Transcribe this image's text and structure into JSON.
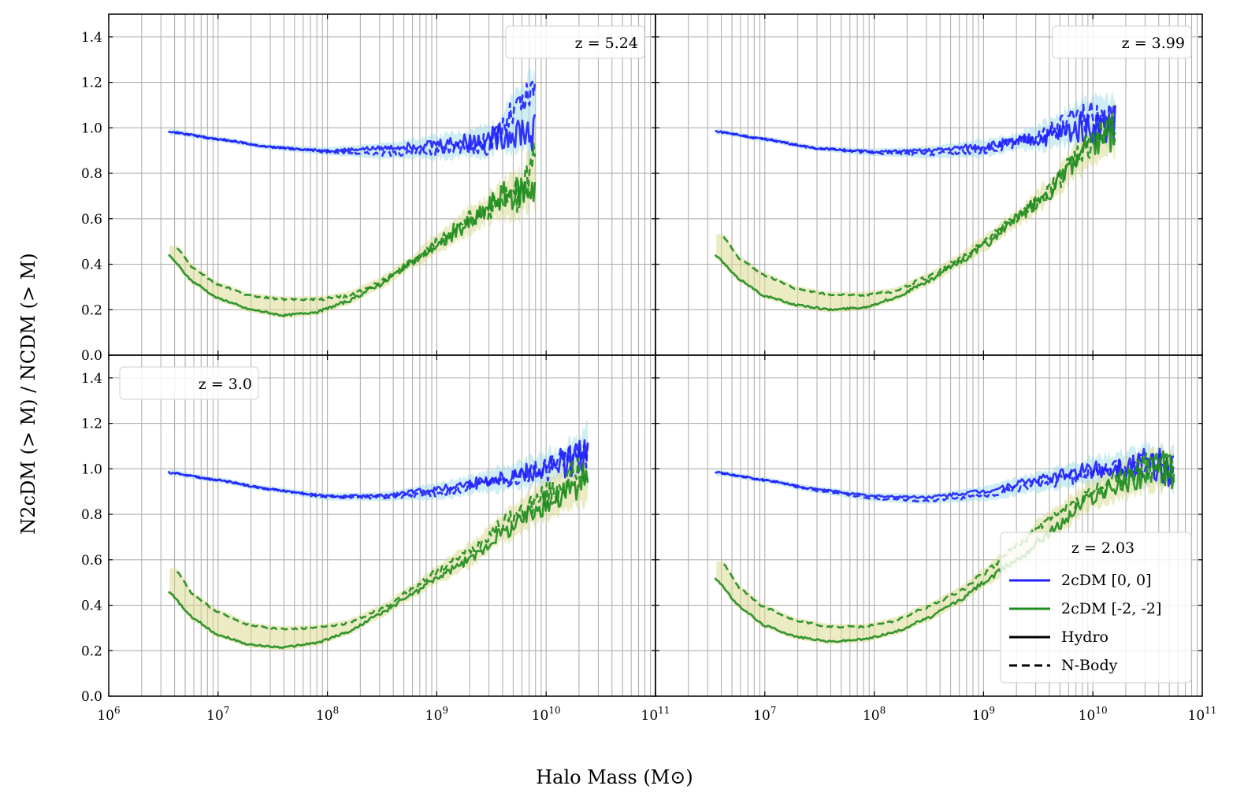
{
  "figure": {
    "xlabel": "Halo Mass (M⊙)",
    "ylabel": "N2cDM (> M) / NCDM (> M)"
  },
  "legend": {
    "title": "z = 2.03",
    "entries": [
      {
        "label": "2cDM [0, 0]",
        "color": "#1f1fff",
        "style": "solid"
      },
      {
        "label": "2cDM [-2, -2]",
        "color": "#1e8c1e",
        "style": "solid"
      },
      {
        "label": "Hydro",
        "color": "#000000",
        "style": "solid"
      },
      {
        "label": "N-Body",
        "color": "#000000",
        "style": "dashed"
      }
    ]
  },
  "colors": {
    "blue": "#1f1fff",
    "green": "#1e8c1e",
    "cyan_band": "#9edcec",
    "olive_band": "#d8d88a",
    "grid": "#b0b0b0"
  },
  "chart_data": [
    {
      "type": "line",
      "panel": "top-left",
      "label": "z = 5.24",
      "label_position": "top-right",
      "xscale": "log",
      "xlim": [
        1000000.0,
        100000000000.0
      ],
      "ylim": [
        0.0,
        1.5
      ],
      "xticks": [],
      "yticks": [
        "0.0",
        "0.2",
        "0.4",
        "0.6",
        "0.8",
        "1.0",
        "1.2",
        "1.4"
      ],
      "xmax_data": 7900000000.0,
      "series": [
        {
          "name": "2cDM [0, 0] Hydro",
          "style": "solid",
          "color": "#1f1fff",
          "points": [
            [
              3500000.0,
              0.985
            ],
            [
              10000000.0,
              0.95
            ],
            [
              30000000.0,
              0.915
            ],
            [
              100000000.0,
              0.9
            ],
            [
              300000000.0,
              0.91
            ],
            [
              1000000000.0,
              0.93
            ],
            [
              3000000000.0,
              0.95
            ],
            [
              6000000000.0,
              0.99
            ],
            [
              7900000000.0,
              0.97
            ]
          ]
        },
        {
          "name": "2cDM [0, 0] N-Body",
          "style": "dashed",
          "color": "#1f1fff",
          "points": [
            [
              4000000.0,
              0.98
            ],
            [
              10000000.0,
              0.95
            ],
            [
              30000000.0,
              0.915
            ],
            [
              100000000.0,
              0.895
            ],
            [
              300000000.0,
              0.885
            ],
            [
              1000000000.0,
              0.9
            ],
            [
              3000000000.0,
              0.93
            ],
            [
              6000000000.0,
              1.1
            ],
            [
              7900000000.0,
              1.15
            ]
          ]
        },
        {
          "name": "2cDM [-2, -2] Hydro",
          "style": "solid",
          "color": "#1e8c1e",
          "points": [
            [
              3500000.0,
              0.44
            ],
            [
              6000000.0,
              0.32
            ],
            [
              10000000.0,
              0.25
            ],
            [
              20000000.0,
              0.2
            ],
            [
              40000000.0,
              0.175
            ],
            [
              80000000.0,
              0.19
            ],
            [
              150000000.0,
              0.235
            ],
            [
              300000000.0,
              0.31
            ],
            [
              600000000.0,
              0.41
            ],
            [
              1000000000.0,
              0.48
            ],
            [
              2000000000.0,
              0.58
            ],
            [
              4000000000.0,
              0.7
            ],
            [
              6000000000.0,
              0.72
            ],
            [
              7900000000.0,
              0.75
            ]
          ]
        },
        {
          "name": "2cDM [-2, -2] N-Body",
          "style": "dashed",
          "color": "#1e8c1e",
          "points": [
            [
              4200000.0,
              0.47
            ],
            [
              6000000.0,
              0.38
            ],
            [
              10000000.0,
              0.31
            ],
            [
              20000000.0,
              0.26
            ],
            [
              40000000.0,
              0.245
            ],
            [
              80000000.0,
              0.245
            ],
            [
              150000000.0,
              0.26
            ],
            [
              300000000.0,
              0.32
            ],
            [
              600000000.0,
              0.41
            ],
            [
              1000000000.0,
              0.5
            ],
            [
              2000000000.0,
              0.6
            ],
            [
              4000000000.0,
              0.67
            ],
            [
              6000000000.0,
              0.7
            ],
            [
              7900000000.0,
              0.9
            ]
          ]
        }
      ]
    },
    {
      "type": "line",
      "panel": "top-right",
      "label": "z = 3.99",
      "label_position": "top-right",
      "xscale": "log",
      "xlim": [
        1000000.0,
        100000000000.0
      ],
      "ylim": [
        0.0,
        1.5
      ],
      "xticks": [],
      "yticks": [],
      "xmax_data": 16000000000.0,
      "series": [
        {
          "name": "2cDM [0, 0] Hydro",
          "style": "solid",
          "color": "#1f1fff",
          "points": [
            [
              3500000.0,
              0.985
            ],
            [
              10000000.0,
              0.95
            ],
            [
              30000000.0,
              0.91
            ],
            [
              100000000.0,
              0.895
            ],
            [
              300000000.0,
              0.9
            ],
            [
              1000000000.0,
              0.92
            ],
            [
              3000000000.0,
              0.95
            ],
            [
              8000000000.0,
              1.0
            ],
            [
              16000000000.0,
              1.02
            ]
          ]
        },
        {
          "name": "2cDM [0, 0] N-Body",
          "style": "dashed",
          "color": "#1f1fff",
          "points": [
            [
              4000000.0,
              0.98
            ],
            [
              10000000.0,
              0.95
            ],
            [
              30000000.0,
              0.91
            ],
            [
              100000000.0,
              0.89
            ],
            [
              300000000.0,
              0.885
            ],
            [
              1000000000.0,
              0.9
            ],
            [
              3000000000.0,
              0.96
            ],
            [
              8000000000.0,
              1.05
            ],
            [
              16000000000.0,
              1.05
            ]
          ]
        },
        {
          "name": "2cDM [-2, -2] Hydro",
          "style": "solid",
          "color": "#1e8c1e",
          "points": [
            [
              3500000.0,
              0.44
            ],
            [
              6000000.0,
              0.33
            ],
            [
              10000000.0,
              0.26
            ],
            [
              20000000.0,
              0.22
            ],
            [
              40000000.0,
              0.2
            ],
            [
              80000000.0,
              0.21
            ],
            [
              150000000.0,
              0.25
            ],
            [
              300000000.0,
              0.32
            ],
            [
              600000000.0,
              0.41
            ],
            [
              1000000000.0,
              0.48
            ],
            [
              2000000000.0,
              0.6
            ],
            [
              4000000000.0,
              0.72
            ],
            [
              8000000000.0,
              0.88
            ],
            [
              16000000000.0,
              0.98
            ]
          ]
        },
        {
          "name": "2cDM [-2, -2] N-Body",
          "style": "dashed",
          "color": "#1e8c1e",
          "points": [
            [
              4200000.0,
              0.52
            ],
            [
              6000000.0,
              0.42
            ],
            [
              10000000.0,
              0.35
            ],
            [
              20000000.0,
              0.29
            ],
            [
              40000000.0,
              0.265
            ],
            [
              80000000.0,
              0.265
            ],
            [
              150000000.0,
              0.28
            ],
            [
              300000000.0,
              0.34
            ],
            [
              600000000.0,
              0.42
            ],
            [
              1000000000.0,
              0.5
            ],
            [
              2000000000.0,
              0.6
            ],
            [
              4000000000.0,
              0.72
            ],
            [
              8000000000.0,
              0.9
            ],
            [
              16000000000.0,
              1.0
            ]
          ]
        }
      ]
    },
    {
      "type": "line",
      "panel": "bottom-left",
      "label": "z = 3.0",
      "label_position": "top-left",
      "xscale": "log",
      "xlim": [
        1000000.0,
        100000000000.0
      ],
      "ylim": [
        0.0,
        1.5
      ],
      "xticks": [
        "10^6",
        "10^7",
        "10^8",
        "10^9",
        "10^10",
        "10^11"
      ],
      "yticks": [
        "0.0",
        "0.2",
        "0.4",
        "0.6",
        "0.8",
        "1.0",
        "1.2",
        "1.4"
      ],
      "xmax_data": 24000000000.0,
      "series": [
        {
          "name": "2cDM [0, 0] Hydro",
          "style": "solid",
          "color": "#1f1fff",
          "points": [
            [
              3500000.0,
              0.985
            ],
            [
              10000000.0,
              0.95
            ],
            [
              30000000.0,
              0.91
            ],
            [
              100000000.0,
              0.88
            ],
            [
              300000000.0,
              0.88
            ],
            [
              1000000000.0,
              0.91
            ],
            [
              3000000000.0,
              0.95
            ],
            [
              10000000000.0,
              1.0
            ],
            [
              24000000000.0,
              1.05
            ]
          ]
        },
        {
          "name": "2cDM [0, 0] N-Body",
          "style": "dashed",
          "color": "#1f1fff",
          "points": [
            [
              4000000.0,
              0.98
            ],
            [
              10000000.0,
              0.95
            ],
            [
              30000000.0,
              0.91
            ],
            [
              100000000.0,
              0.875
            ],
            [
              300000000.0,
              0.875
            ],
            [
              1000000000.0,
              0.89
            ],
            [
              3000000000.0,
              0.94
            ],
            [
              10000000000.0,
              1.0
            ],
            [
              24000000000.0,
              1.08
            ]
          ]
        },
        {
          "name": "2cDM [-2, -2] Hydro",
          "style": "solid",
          "color": "#1e8c1e",
          "points": [
            [
              3500000.0,
              0.46
            ],
            [
              6000000.0,
              0.34
            ],
            [
              10000000.0,
              0.27
            ],
            [
              20000000.0,
              0.225
            ],
            [
              40000000.0,
              0.215
            ],
            [
              80000000.0,
              0.235
            ],
            [
              150000000.0,
              0.28
            ],
            [
              300000000.0,
              0.36
            ],
            [
              600000000.0,
              0.45
            ],
            [
              1000000000.0,
              0.52
            ],
            [
              2000000000.0,
              0.6
            ],
            [
              4000000000.0,
              0.72
            ],
            [
              10000000000.0,
              0.85
            ],
            [
              24000000000.0,
              0.95
            ]
          ]
        },
        {
          "name": "2cDM [-2, -2] N-Body",
          "style": "dashed",
          "color": "#1e8c1e",
          "points": [
            [
              4200000.0,
              0.55
            ],
            [
              6000000.0,
              0.44
            ],
            [
              10000000.0,
              0.37
            ],
            [
              20000000.0,
              0.31
            ],
            [
              40000000.0,
              0.295
            ],
            [
              80000000.0,
              0.3
            ],
            [
              150000000.0,
              0.32
            ],
            [
              300000000.0,
              0.38
            ],
            [
              600000000.0,
              0.47
            ],
            [
              1000000000.0,
              0.55
            ],
            [
              2000000000.0,
              0.64
            ],
            [
              4000000000.0,
              0.76
            ],
            [
              10000000000.0,
              0.88
            ],
            [
              24000000000.0,
              1.0
            ]
          ]
        }
      ]
    },
    {
      "type": "line",
      "panel": "bottom-right",
      "label": "z = 2.03",
      "label_position": "legend",
      "xscale": "log",
      "xlim": [
        1000000.0,
        100000000000.0
      ],
      "ylim": [
        0.0,
        1.5
      ],
      "xticks": [
        "10^7",
        "10^8",
        "10^9",
        "10^10",
        "10^11"
      ],
      "yticks": [],
      "xmax_data": 55000000000.0,
      "series": [
        {
          "name": "2cDM [0, 0] Hydro",
          "style": "solid",
          "color": "#1f1fff",
          "points": [
            [
              3500000.0,
              0.985
            ],
            [
              10000000.0,
              0.95
            ],
            [
              30000000.0,
              0.91
            ],
            [
              100000000.0,
              0.88
            ],
            [
              300000000.0,
              0.875
            ],
            [
              1000000000.0,
              0.9
            ],
            [
              3000000000.0,
              0.95
            ],
            [
              10000000000.0,
              1.0
            ],
            [
              30000000000.0,
              1.02
            ],
            [
              55000000000.0,
              1.0
            ]
          ]
        },
        {
          "name": "2cDM [0, 0] N-Body",
          "style": "dashed",
          "color": "#1f1fff",
          "points": [
            [
              4000000.0,
              0.98
            ],
            [
              10000000.0,
              0.95
            ],
            [
              30000000.0,
              0.905
            ],
            [
              100000000.0,
              0.87
            ],
            [
              300000000.0,
              0.86
            ],
            [
              1000000000.0,
              0.88
            ],
            [
              3000000000.0,
              0.93
            ],
            [
              10000000000.0,
              0.98
            ],
            [
              30000000000.0,
              1.02
            ],
            [
              55000000000.0,
              1.0
            ]
          ]
        },
        {
          "name": "2cDM [-2, -2] Hydro",
          "style": "solid",
          "color": "#1e8c1e",
          "points": [
            [
              3500000.0,
              0.52
            ],
            [
              6000000.0,
              0.39
            ],
            [
              10000000.0,
              0.31
            ],
            [
              20000000.0,
              0.26
            ],
            [
              40000000.0,
              0.24
            ],
            [
              80000000.0,
              0.25
            ],
            [
              150000000.0,
              0.28
            ],
            [
              300000000.0,
              0.34
            ],
            [
              600000000.0,
              0.42
            ],
            [
              1000000000.0,
              0.5
            ],
            [
              2000000000.0,
              0.6
            ],
            [
              4000000000.0,
              0.72
            ],
            [
              10000000000.0,
              0.88
            ],
            [
              30000000000.0,
              0.98
            ],
            [
              55000000000.0,
              1.0
            ]
          ]
        },
        {
          "name": "2cDM [-2, -2] N-Body",
          "style": "dashed",
          "color": "#1e8c1e",
          "points": [
            [
              4200000.0,
              0.58
            ],
            [
              6000000.0,
              0.47
            ],
            [
              10000000.0,
              0.39
            ],
            [
              20000000.0,
              0.33
            ],
            [
              40000000.0,
              0.305
            ],
            [
              80000000.0,
              0.305
            ],
            [
              150000000.0,
              0.33
            ],
            [
              300000000.0,
              0.39
            ],
            [
              600000000.0,
              0.46
            ],
            [
              1000000000.0,
              0.54
            ],
            [
              2000000000.0,
              0.66
            ],
            [
              4000000000.0,
              0.78
            ],
            [
              10000000000.0,
              0.9
            ],
            [
              30000000000.0,
              1.0
            ],
            [
              55000000000.0,
              1.0
            ]
          ]
        }
      ]
    }
  ]
}
